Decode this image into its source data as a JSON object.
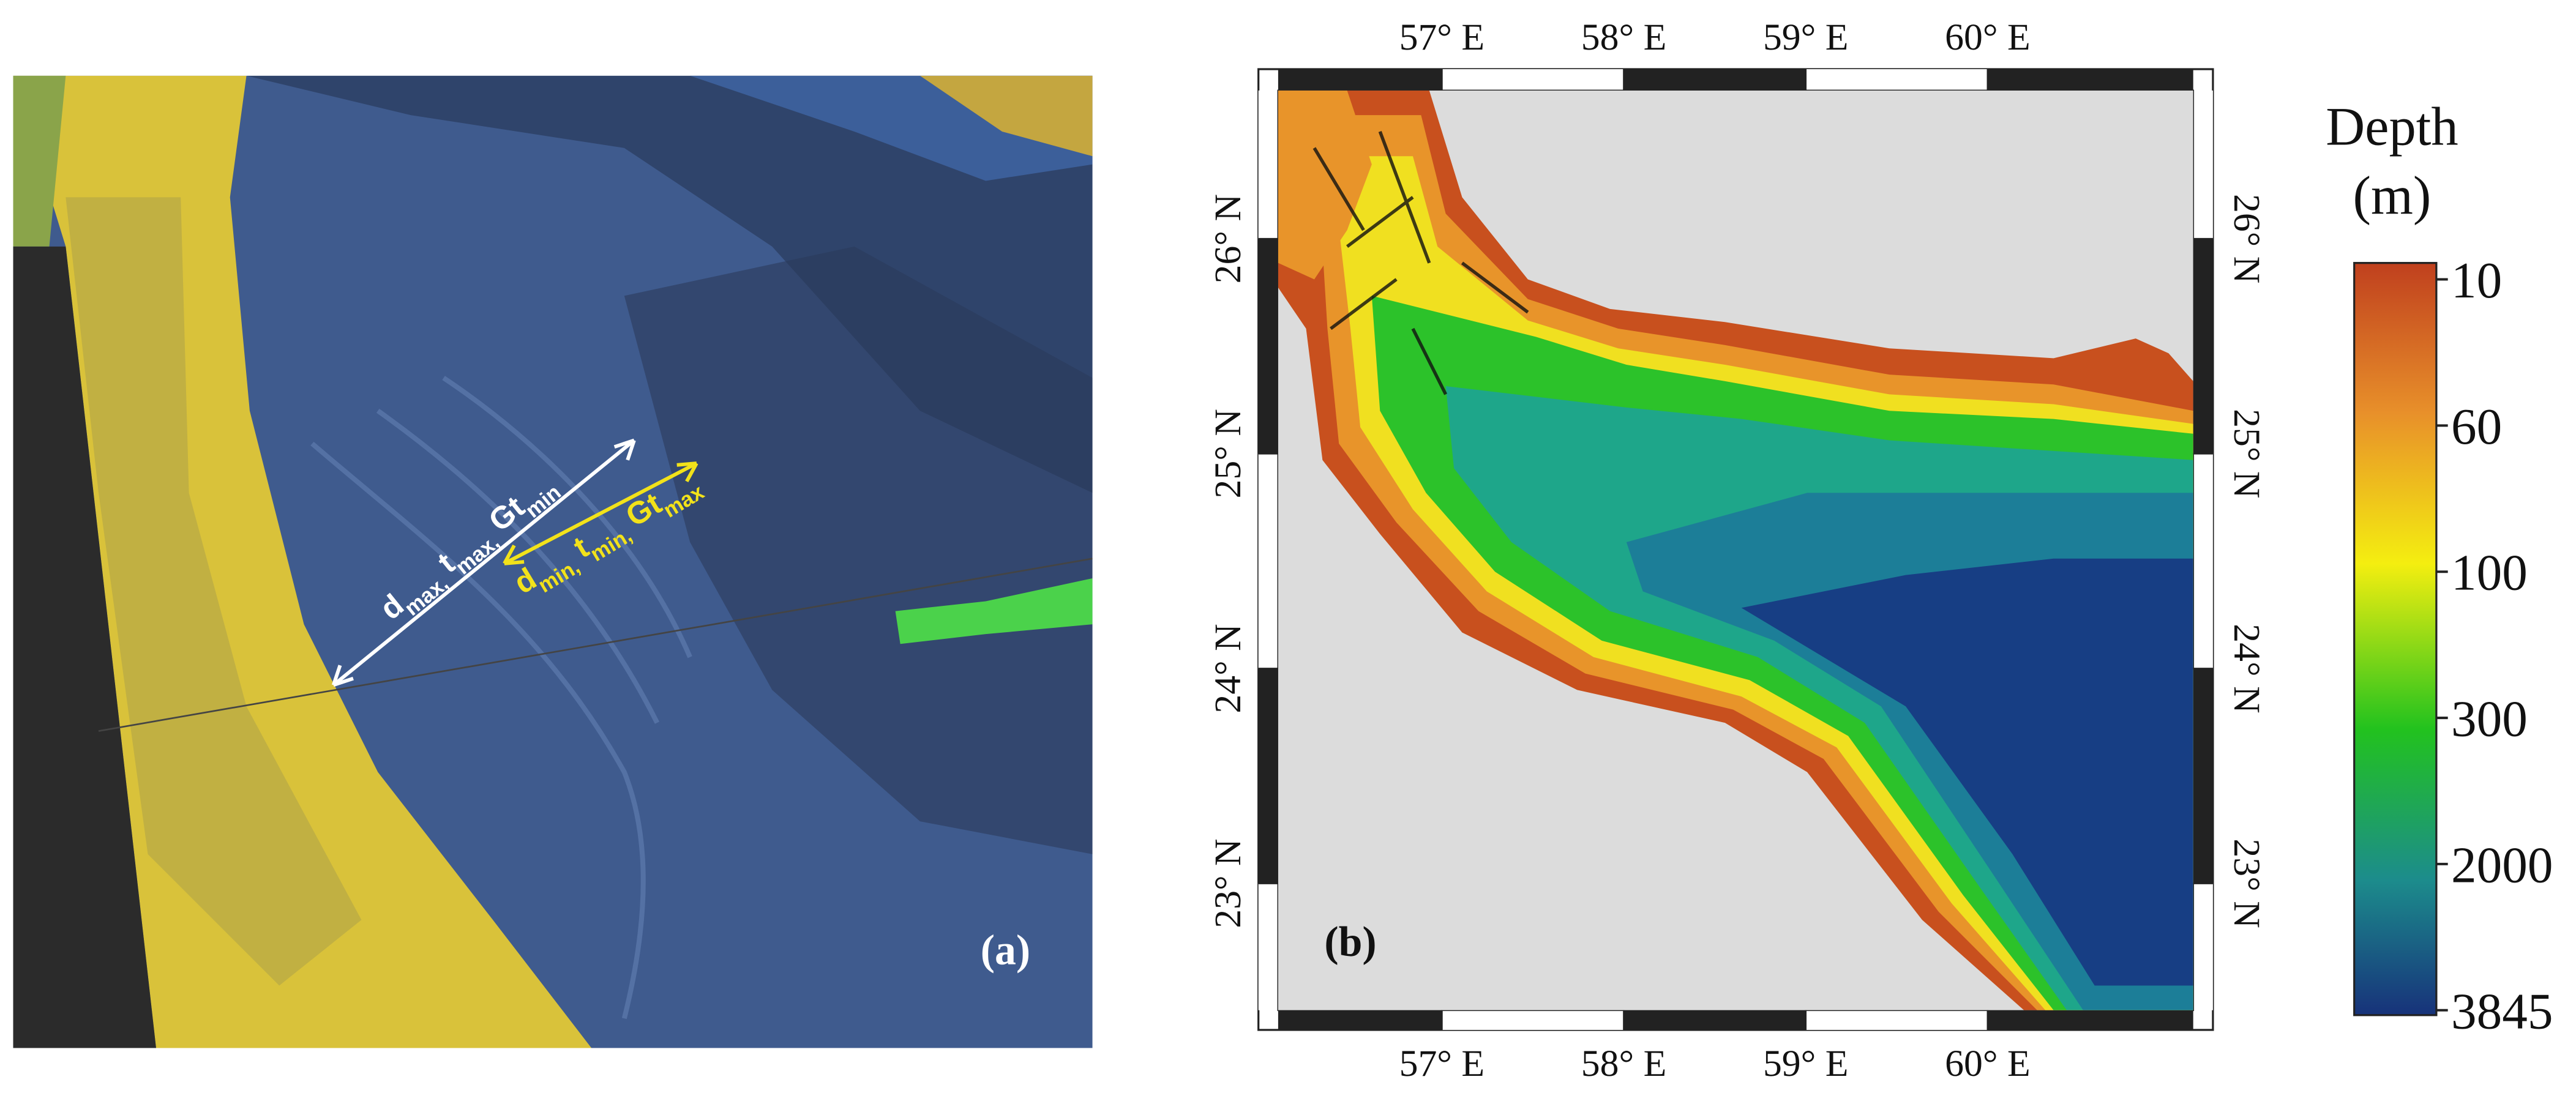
{
  "panel_a": {
    "label": "(a)",
    "white_arrow": [
      {
        "base": "d",
        "sub": "max,"
      },
      {
        "base": "t",
        "sub": "max,"
      },
      {
        "base": "Gt",
        "sub": "min"
      }
    ],
    "yellow_arrow": [
      {
        "base": "d",
        "sub": "min,"
      },
      {
        "base": "t",
        "sub": "min,"
      },
      {
        "base": "Gt",
        "sub": "max"
      }
    ]
  },
  "panel_b": {
    "label": "(b)",
    "lonlim": [
      56.1,
      61.13
    ],
    "latlim": [
      22.41,
      26.69
    ],
    "lonticks": [
      {
        "value": 57,
        "label": "57° E"
      },
      {
        "value": 58,
        "label": "58° E"
      },
      {
        "value": 59,
        "label": "59° E"
      },
      {
        "value": 60,
        "label": "60° E"
      }
    ],
    "latticks": [
      {
        "value": 23,
        "label": "23° N"
      },
      {
        "value": 24,
        "label": "24° N"
      },
      {
        "value": 25,
        "label": "25° N"
      },
      {
        "value": 26,
        "label": "26° N"
      }
    ]
  },
  "colorbar": {
    "title": [
      "Depth",
      "(m)"
    ],
    "ticks": [
      10,
      60,
      100,
      300,
      2000,
      3845
    ]
  }
}
